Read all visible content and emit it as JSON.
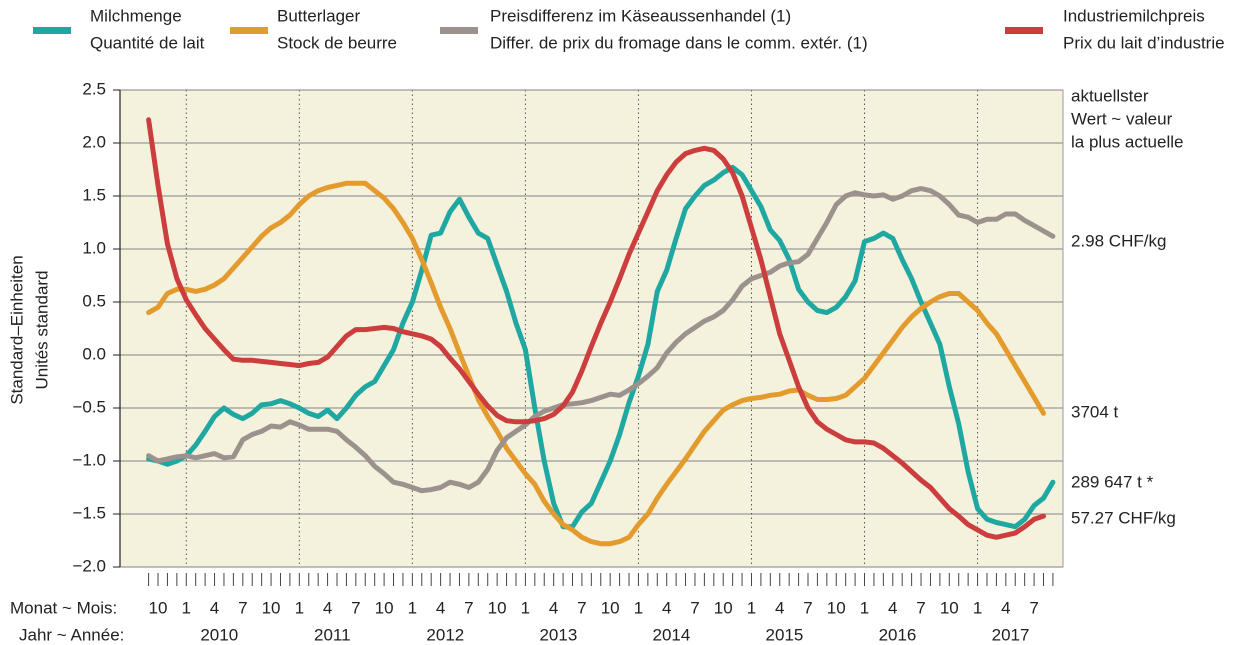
{
  "chart_data": {
    "type": "line",
    "y_label": [
      "Standard–Einheiten",
      "Unités standard"
    ],
    "x_month_label": "Monat ~ Mois:",
    "x_year_label": "Jahr ~ Année:",
    "years": [
      "2010",
      "2011",
      "2012",
      "2013",
      "2014",
      "2015",
      "2016",
      "2017"
    ],
    "categories": [
      null,
      "10",
      null,
      null,
      "1",
      null,
      null,
      "4",
      null,
      null,
      "7",
      null,
      null,
      "10",
      null,
      null,
      "1",
      null,
      null,
      "4",
      null,
      null,
      "7",
      null,
      null,
      "10",
      null,
      null,
      "1",
      null,
      null,
      "4",
      null,
      null,
      "7",
      null,
      null,
      "10",
      null,
      null,
      "1",
      null,
      null,
      "4",
      null,
      null,
      "7",
      null,
      null,
      "10",
      null,
      null,
      "1",
      null,
      null,
      "4",
      null,
      null,
      "7",
      null,
      null,
      "10",
      null,
      null,
      "1",
      null,
      null,
      "4",
      null,
      null,
      "7",
      null,
      null,
      "10",
      null,
      null,
      "1",
      null,
      null,
      "4",
      null,
      null,
      "7",
      null,
      null,
      "10",
      null,
      null,
      "1",
      null,
      null,
      "4",
      null,
      null,
      "7",
      null,
      null
    ],
    "ylim": [
      -2.0,
      2.5
    ],
    "yticks": [
      2.5,
      {
        "value": 2.0,
        "label": "2.0"
      },
      1.5,
      {
        "value": 1.0,
        "label": "1.0"
      },
      0.5,
      {
        "value": 0.0,
        "label": "0.0"
      },
      {
        "value": -0.5,
        "label": "−0.5"
      },
      {
        "value": -1.0,
        "label": "−1.0"
      },
      {
        "value": -1.5,
        "label": "−1.5"
      },
      {
        "value": -2.0,
        "label": "−2.0"
      }
    ],
    "grid": true,
    "annotations": [
      "aktuellster",
      "Wert ~ valeur",
      "la plus actuelle"
    ],
    "end_labels": [
      "2.98 CHF/kg",
      "3704 t",
      "289 647 t *",
      "57.27 CHF/kg"
    ],
    "series": [
      {
        "name": "Milchmenge",
        "name2": "Quantité de lait",
        "color": "#1fa8a2",
        "values": [
          -0.98,
          -1.0,
          -1.03,
          -1.0,
          -0.95,
          -0.85,
          -0.72,
          -0.58,
          -0.5,
          -0.56,
          -0.6,
          -0.55,
          -0.47,
          -0.46,
          -0.43,
          -0.46,
          -0.5,
          -0.55,
          -0.58,
          -0.52,
          -0.6,
          -0.5,
          -0.38,
          -0.3,
          -0.25,
          -0.1,
          0.05,
          0.3,
          0.5,
          0.8,
          1.13,
          1.15,
          1.35,
          1.47,
          1.3,
          1.15,
          1.1,
          0.85,
          0.6,
          0.3,
          0.05,
          -0.5,
          -1.0,
          -1.4,
          -1.62,
          -1.62,
          -1.48,
          -1.4,
          -1.2,
          -1.0,
          -0.75,
          -0.45,
          -0.2,
          0.1,
          0.6,
          0.8,
          1.1,
          1.38,
          1.5,
          1.6,
          1.65,
          1.72,
          1.77,
          1.7,
          1.55,
          1.4,
          1.18,
          1.08,
          0.9,
          0.62,
          0.5,
          0.42,
          0.4,
          0.45,
          0.55,
          0.7,
          1.07,
          1.1,
          1.15,
          1.1,
          0.9,
          0.72,
          0.5,
          0.3,
          0.1,
          -0.3,
          -0.65,
          -1.1,
          -1.45,
          -1.55,
          -1.58,
          -1.6,
          -1.62,
          -1.55,
          -1.42,
          -1.35,
          -1.2
        ]
      },
      {
        "name": "Butterlager",
        "name2": "Stock de beurre",
        "color": "#e49b2e",
        "values": [
          0.4,
          0.45,
          0.58,
          0.62,
          0.62,
          0.6,
          0.62,
          0.66,
          0.72,
          0.82,
          0.92,
          1.02,
          1.12,
          1.2,
          1.25,
          1.32,
          1.42,
          1.5,
          1.55,
          1.58,
          1.6,
          1.62,
          1.62,
          1.62,
          1.55,
          1.48,
          1.38,
          1.25,
          1.1,
          0.9,
          0.68,
          0.45,
          0.25,
          0.02,
          -0.2,
          -0.42,
          -0.58,
          -0.72,
          -0.88,
          -1.0,
          -1.12,
          -1.22,
          -1.38,
          -1.5,
          -1.6,
          -1.65,
          -1.72,
          -1.76,
          -1.78,
          -1.78,
          -1.76,
          -1.72,
          -1.6,
          -1.5,
          -1.35,
          -1.22,
          -1.1,
          -0.98,
          -0.85,
          -0.72,
          -0.62,
          -0.52,
          -0.47,
          -0.43,
          -0.41,
          -0.4,
          -0.38,
          -0.37,
          -0.34,
          -0.33,
          -0.38,
          -0.42,
          -0.42,
          -0.41,
          -0.38,
          -0.3,
          -0.22,
          -0.1,
          0.02,
          0.14,
          0.26,
          0.36,
          0.44,
          0.5,
          0.55,
          0.58,
          0.58,
          0.5,
          0.42,
          0.3,
          0.2,
          0.05,
          -0.1,
          -0.25,
          -0.4,
          -0.55,
          null
        ]
      },
      {
        "name": "Preisdifferenz im Käseaussenhandel (1)",
        "name2": "Differ. de prix du fromage dans le comm. extér. (1)",
        "color": "#9c928d",
        "values": [
          -0.95,
          -1.0,
          -0.98,
          -0.96,
          -0.95,
          -0.97,
          -0.95,
          -0.93,
          -0.97,
          -0.96,
          -0.8,
          -0.75,
          -0.72,
          -0.67,
          -0.68,
          -0.63,
          -0.66,
          -0.7,
          -0.7,
          -0.7,
          -0.72,
          -0.8,
          -0.87,
          -0.95,
          -1.05,
          -1.12,
          -1.2,
          -1.22,
          -1.25,
          -1.28,
          -1.27,
          -1.25,
          -1.2,
          -1.22,
          -1.25,
          -1.2,
          -1.08,
          -0.9,
          -0.78,
          -0.72,
          -0.66,
          -0.58,
          -0.53,
          -0.5,
          -0.47,
          -0.46,
          -0.45,
          -0.43,
          -0.4,
          -0.37,
          -0.38,
          -0.33,
          -0.27,
          -0.2,
          -0.12,
          0.02,
          0.12,
          0.2,
          0.26,
          0.32,
          0.36,
          0.42,
          0.52,
          0.65,
          0.72,
          0.75,
          0.78,
          0.84,
          0.87,
          0.88,
          0.95,
          1.1,
          1.25,
          1.42,
          1.5,
          1.53,
          1.51,
          1.5,
          1.51,
          1.47,
          1.5,
          1.55,
          1.57,
          1.55,
          1.5,
          1.42,
          1.32,
          1.3,
          1.25,
          1.28,
          1.28,
          1.33,
          1.33,
          1.27,
          1.22,
          1.17,
          1.12
        ]
      },
      {
        "name": "Industriemilchpreis",
        "name2": "Prix du lait d’industrie",
        "color": "#cc3d3d",
        "values": [
          2.22,
          1.6,
          1.05,
          0.72,
          0.52,
          0.38,
          0.25,
          0.15,
          0.05,
          -0.04,
          -0.05,
          -0.05,
          -0.06,
          -0.07,
          -0.08,
          -0.09,
          -0.1,
          -0.08,
          -0.07,
          -0.02,
          0.08,
          0.18,
          0.24,
          0.24,
          0.25,
          0.26,
          0.25,
          0.22,
          0.2,
          0.18,
          0.15,
          0.08,
          -0.03,
          -0.13,
          -0.25,
          -0.37,
          -0.48,
          -0.57,
          -0.62,
          -0.63,
          -0.63,
          -0.62,
          -0.6,
          -0.56,
          -0.48,
          -0.35,
          -0.15,
          0.08,
          0.3,
          0.5,
          0.72,
          0.95,
          1.15,
          1.35,
          1.55,
          1.7,
          1.82,
          1.9,
          1.93,
          1.95,
          1.93,
          1.85,
          1.72,
          1.5,
          1.2,
          0.9,
          0.55,
          0.2,
          -0.05,
          -0.3,
          -0.5,
          -0.63,
          -0.7,
          -0.75,
          -0.8,
          -0.82,
          -0.82,
          -0.83,
          -0.88,
          -0.95,
          -1.02,
          -1.1,
          -1.18,
          -1.25,
          -1.35,
          -1.45,
          -1.52,
          -1.6,
          -1.65,
          -1.7,
          -1.72,
          -1.7,
          -1.68,
          -1.62,
          -1.55,
          -1.52,
          null
        ]
      }
    ]
  }
}
